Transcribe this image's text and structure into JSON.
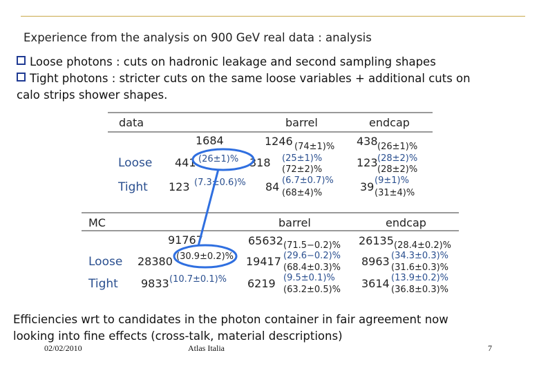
{
  "slide": {
    "heading": "Experience from the analysis on 900 GeV real data : analysis",
    "bullets": [
      "Loose photons : cuts on hadronic leakage and second sampling shapes",
      "Tight photons  : stricter cuts on the same loose variables + additional cuts on",
      "calo strips shower shapes."
    ],
    "conclusion": [
      "Efficiencies wrt to candidates in the photon container in fair agreement now",
      "looking into fine effects (cross-talk, material descriptions)"
    ]
  },
  "data_table": {
    "header": [
      "data",
      "barrel",
      "endcap"
    ],
    "total": {
      "all": "1684",
      "barrel": "1246",
      "barrel_pct": "(74±1)%",
      "endcap": "438",
      "endcap_pct": "(26±1)%"
    },
    "loose": {
      "label": "Loose",
      "all": "441",
      "all_pct": "(26±1)%",
      "barrel": "318",
      "barrel_pct1": "(25±1)%",
      "barrel_pct2": "(72±2)%",
      "endcap": "123",
      "endcap_pct1": "(28±2)%",
      "endcap_pct2": "(28±2)%"
    },
    "tight": {
      "label": "Tight",
      "all": "123",
      "all_pct": "(7.3±0.6)%",
      "barrel": "84",
      "barrel_pct1": "(6.7±0.7)%",
      "barrel_pct2": "(68±4)%",
      "endcap": "39",
      "endcap_pct1": "(9±1)%",
      "endcap_pct2": "(31±4)%"
    }
  },
  "mc_table": {
    "header": [
      "MC",
      "barrel",
      "endcap"
    ],
    "total": {
      "all": "91767",
      "barrel": "65632",
      "barrel_pct": "(71.5−0.2)%",
      "endcap": "26135",
      "endcap_pct": "(28.4±0.2)%"
    },
    "loose": {
      "label": "Loose",
      "all": "28380",
      "all_pct": "(30.9±0.2)%",
      "barrel": "19417",
      "barrel_pct1": "(29.6−0.2)%",
      "barrel_pct2": "(68.4±0.3)%",
      "endcap": "8963",
      "endcap_pct1": "(34.3±0.3)%",
      "endcap_pct2": "(31.6±0.3)%"
    },
    "tight": {
      "label": "Tight",
      "all": "9833",
      "all_pct": "(10.7±0.1)%",
      "barrel": "6219",
      "barrel_pct1": "(9.5±0.1)%",
      "barrel_pct2": "(63.2±0.5)%",
      "endcap": "3614",
      "endcap_pct1": "(13.9±0.2)%",
      "endcap_pct2": "(36.8±0.3)%"
    }
  },
  "footer": {
    "date": "02/02/2010",
    "title": "Atlas Italia",
    "page": "7"
  },
  "colors": {
    "accent_line": "#c9a94a",
    "highlight": "#2f6fe0",
    "row_label": "#2a4f8f"
  }
}
